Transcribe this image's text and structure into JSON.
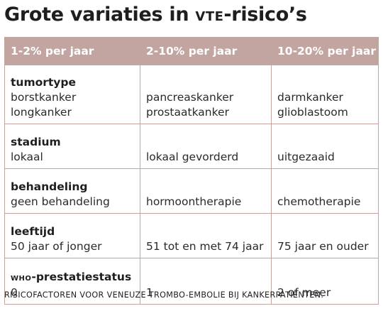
{
  "title": {
    "prefix": "Grote variaties in ",
    "abbr": "VTE",
    "suffix": "-risico’s"
  },
  "table": {
    "headers": [
      "1-2% per jaar",
      "2-10% per jaar",
      "10-20% per jaar"
    ],
    "rows": [
      {
        "factor": "tumortype",
        "col1": [
          "borstkanker",
          "longkanker"
        ],
        "col2": [
          "pancreaskanker",
          "prostaatkanker"
        ],
        "col3": [
          "darmkanker",
          "glioblastoom"
        ]
      },
      {
        "factor": "stadium",
        "col1": [
          "lokaal"
        ],
        "col2": [
          "lokaal gevorderd"
        ],
        "col3": [
          "uitgezaaid"
        ]
      },
      {
        "factor": "behandeling",
        "col1": [
          "geen behandeling"
        ],
        "col2": [
          "hormoontherapie"
        ],
        "col3": [
          "chemotherapie"
        ]
      },
      {
        "factor": "leeftijd",
        "col1": [
          "50 jaar of jonger"
        ],
        "col2": [
          "51 tot en met 74 jaar"
        ],
        "col3": [
          "75 jaar en ouder"
        ]
      },
      {
        "factor_abbr": "WHO",
        "factor_rest": "-prestatiestatus",
        "col1": [
          "0"
        ],
        "col2": [
          "1"
        ],
        "col3": [
          "2 of meer"
        ]
      }
    ]
  },
  "caption": "RISICOFACTOREN VOOR VENEUZE TROMBO-EMBOLIE BIJ KANKERPATIËNTEN.",
  "colors": {
    "header_bg": "#c2a4a1",
    "header_text": "#ffffff",
    "border": "#c2a4a1",
    "text": "#1e1e1e"
  }
}
